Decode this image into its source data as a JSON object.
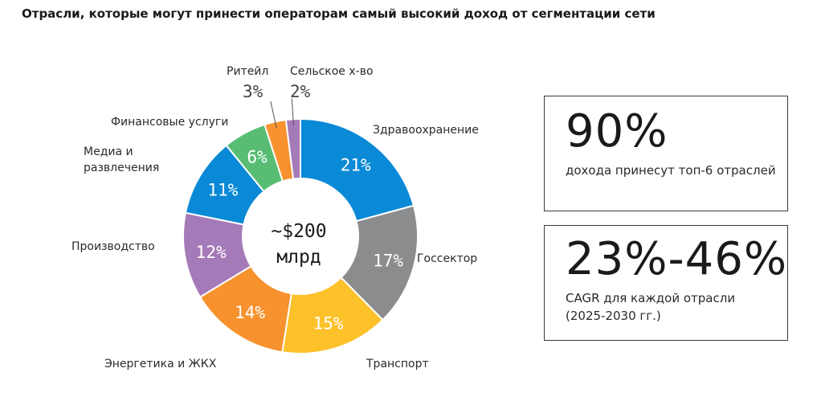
{
  "title": "Отрасли, которые могут принести операторам самый высокий доход от сегментации сети",
  "chart_data": {
    "type": "pie",
    "variant": "donut",
    "center_label_line1": "~$200",
    "center_label_line2": "млрд",
    "slices": [
      {
        "name": "Здравоохранение",
        "value": 21,
        "label": "21%",
        "color": "#0a8ad6"
      },
      {
        "name": "Госсектор",
        "value": 17,
        "label": "17%",
        "color": "#8a8c8e"
      },
      {
        "name": "Транспорт",
        "value": 15,
        "label": "15%",
        "color": "#fdc12a"
      },
      {
        "name": "Энергетика и ЖКХ",
        "value": 14,
        "label": "14%",
        "color": "#f7922e"
      },
      {
        "name": "Производство",
        "value": 12,
        "label": "12%",
        "color": "#a57ab8"
      },
      {
        "name": "Медиа и развлечения",
        "value": 11,
        "label": "11%",
        "color": "#0a8ad6"
      },
      {
        "name": "Финансовые услуги",
        "value": 6,
        "label": "6%",
        "color": "#58bd72"
      },
      {
        "name": "Ритейл",
        "value": 3,
        "label": "3%",
        "color": "#f7922e"
      },
      {
        "name": "Сельское х-во",
        "value": 2,
        "label": "2%",
        "color": "#a57ab8"
      }
    ]
  },
  "labels": {
    "health": "Здравоохранение",
    "gov": "Госсектор",
    "transport": "Транспорт",
    "energy": "Энергетика и ЖКХ",
    "production": "Производство",
    "media_line1": "Медиа и",
    "media_line2": "развлечения",
    "finance": "Финансовые услуги",
    "retail": "Ритейл",
    "retail_pct": "3%",
    "agri": "Сельское х-во",
    "agri_pct": "2%"
  },
  "stats": [
    {
      "value": "90%",
      "text_line1": "дохода принесут топ-6 отраслей",
      "text_line2": ""
    },
    {
      "value": "23%-46%",
      "text_line1": "CAGR для каждой отрасли",
      "text_line2": "(2025-2030 гг.)"
    }
  ]
}
